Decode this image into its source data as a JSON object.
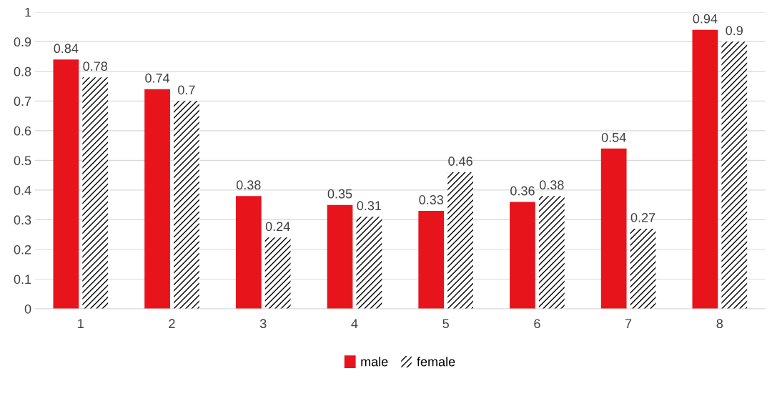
{
  "chart_data": {
    "type": "bar",
    "categories": [
      "1",
      "2",
      "3",
      "4",
      "5",
      "6",
      "7",
      "8"
    ],
    "series": [
      {
        "name": "male",
        "color": "#e8141c",
        "values": [
          0.84,
          0.74,
          0.38,
          0.35,
          0.33,
          0.36,
          0.54,
          0.94
        ]
      },
      {
        "name": "female",
        "color": "#000000",
        "values": [
          0.78,
          0.7,
          0.24,
          0.31,
          0.46,
          0.38,
          0.27,
          0.9
        ]
      }
    ],
    "ylim": [
      0,
      1
    ],
    "yticks": [
      0,
      0.1,
      0.2,
      0.3,
      0.4,
      0.5,
      0.6,
      0.7,
      0.8,
      0.9,
      1
    ],
    "grid": "y",
    "legend": "bottom",
    "data_labels": true
  }
}
